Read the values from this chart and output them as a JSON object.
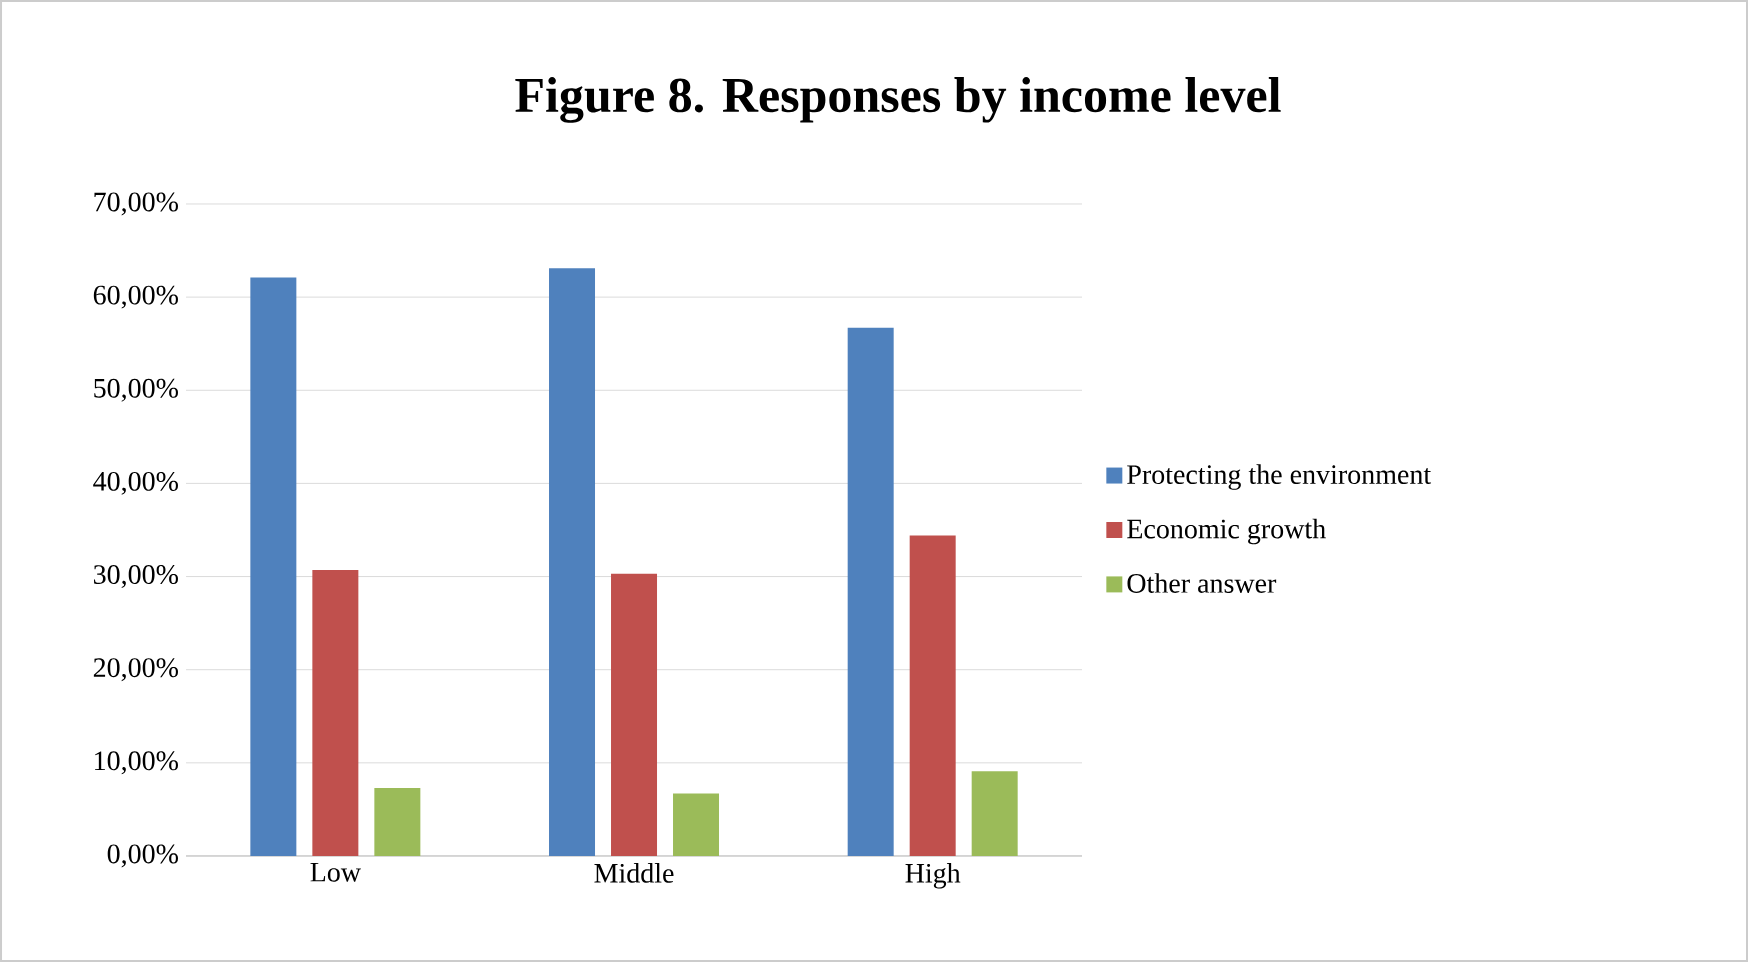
{
  "chart_data": {
    "type": "bar",
    "title": "Figure 8. Responses by income level",
    "categories": [
      "Low",
      "Middle",
      "High"
    ],
    "series": [
      {
        "name": "Protecting the environment",
        "color": "#4f81bd",
        "values": [
          62.1,
          63.1,
          56.7
        ]
      },
      {
        "name": "Economic growth",
        "color": "#c0504d",
        "values": [
          30.7,
          30.3,
          34.4
        ]
      },
      {
        "name": "Other answer",
        "color": "#9bbb59",
        "values": [
          7.3,
          6.7,
          9.1
        ]
      }
    ],
    "ylim": [
      0,
      70
    ],
    "yticks": [
      {
        "value": 0,
        "label": "0,00%"
      },
      {
        "value": 10,
        "label": "10,00%"
      },
      {
        "value": 20,
        "label": "20,00%"
      },
      {
        "value": 30,
        "label": "30,00%"
      },
      {
        "value": 40,
        "label": "40,00%"
      },
      {
        "value": 50,
        "label": "50,00%"
      },
      {
        "value": 60,
        "label": "60,00%"
      },
      {
        "value": 70,
        "label": "70,00%"
      }
    ],
    "grid": "y",
    "legend": "right"
  }
}
